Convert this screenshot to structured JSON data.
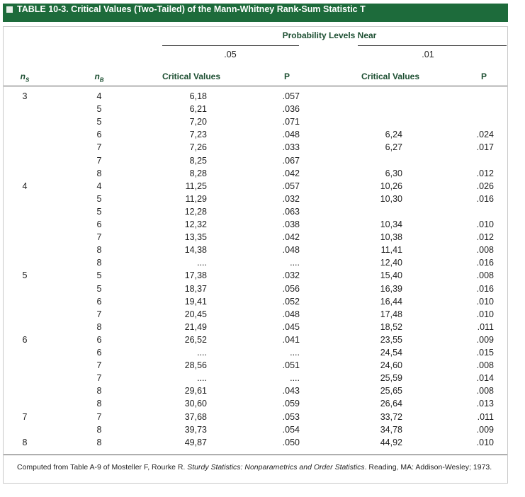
{
  "header": {
    "title": "TABLE 10-3. Critical Values (Two-Tailed) of the Mann-Whitney Rank-Sum Statistic T"
  },
  "table": {
    "group_title": "Probability Levels Near",
    "groups": [
      ".05",
      ".01"
    ],
    "columns": {
      "ns": {
        "n": "n",
        "sub": "S"
      },
      "nb": {
        "n": "n",
        "sub": "B"
      },
      "cv05": "Critical Values",
      "p05": "P",
      "cv01": "Critical Values",
      "p01": "P"
    },
    "rows": [
      [
        "3",
        "4",
        "6,18",
        ".057",
        null,
        null
      ],
      [
        null,
        "5",
        "6,21",
        ".036",
        null,
        null
      ],
      [
        null,
        "5",
        "7,20",
        ".071",
        null,
        null
      ],
      [
        null,
        "6",
        "7,23",
        ".048",
        "6,24",
        ".024"
      ],
      [
        null,
        "7",
        "7,26",
        ".033",
        "6,27",
        ".017"
      ],
      [
        null,
        "7",
        "8,25",
        ".067",
        null,
        null
      ],
      [
        null,
        "8",
        "8,28",
        ".042",
        "6,30",
        ".012"
      ],
      [
        "4",
        "4",
        "11,25",
        ".057",
        "10,26",
        ".026"
      ],
      [
        null,
        "5",
        "11,29",
        ".032",
        "10,30",
        ".016"
      ],
      [
        null,
        "5",
        "12,28",
        ".063",
        null,
        null
      ],
      [
        null,
        "6",
        "12,32",
        ".038",
        "10,34",
        ".010"
      ],
      [
        null,
        "7",
        "13,35",
        ".042",
        "10,38",
        ".012"
      ],
      [
        null,
        "8",
        "14,38",
        ".048",
        "11,41",
        ".008"
      ],
      [
        null,
        "8",
        "....",
        "....",
        "12,40",
        ".016"
      ],
      [
        "5",
        "5",
        "17,38",
        ".032",
        "15,40",
        ".008"
      ],
      [
        null,
        "5",
        "18,37",
        ".056",
        "16,39",
        ".016"
      ],
      [
        null,
        "6",
        "19,41",
        ".052",
        "16,44",
        ".010"
      ],
      [
        null,
        "7",
        "20,45",
        ".048",
        "17,48",
        ".010"
      ],
      [
        null,
        "8",
        "21,49",
        ".045",
        "18,52",
        ".011"
      ],
      [
        "6",
        "6",
        "26,52",
        ".041",
        "23,55",
        ".009"
      ],
      [
        null,
        "6",
        "....",
        "....",
        "24,54",
        ".015"
      ],
      [
        null,
        "7",
        "28,56",
        ".051",
        "24,60",
        ".008"
      ],
      [
        null,
        "7",
        "....",
        "....",
        "25,59",
        ".014"
      ],
      [
        null,
        "8",
        "29,61",
        ".043",
        "25,65",
        ".008"
      ],
      [
        null,
        "8",
        "30,60",
        ".059",
        "26,64",
        ".013"
      ],
      [
        "7",
        "7",
        "37,68",
        ".053",
        "33,72",
        ".011"
      ],
      [
        null,
        "8",
        "39,73",
        ".054",
        "34,78",
        ".009"
      ],
      [
        "8",
        "8",
        "49,87",
        ".050",
        "44,92",
        ".010"
      ]
    ]
  },
  "footnote": {
    "before": "Computed from Table A-9 of Mosteller F, Rourke R. ",
    "italic": "Sturdy Statistics: Nonparametrics and Order Statistics",
    "after": ". Reading, MA: Addison-Wesley; 1973."
  }
}
